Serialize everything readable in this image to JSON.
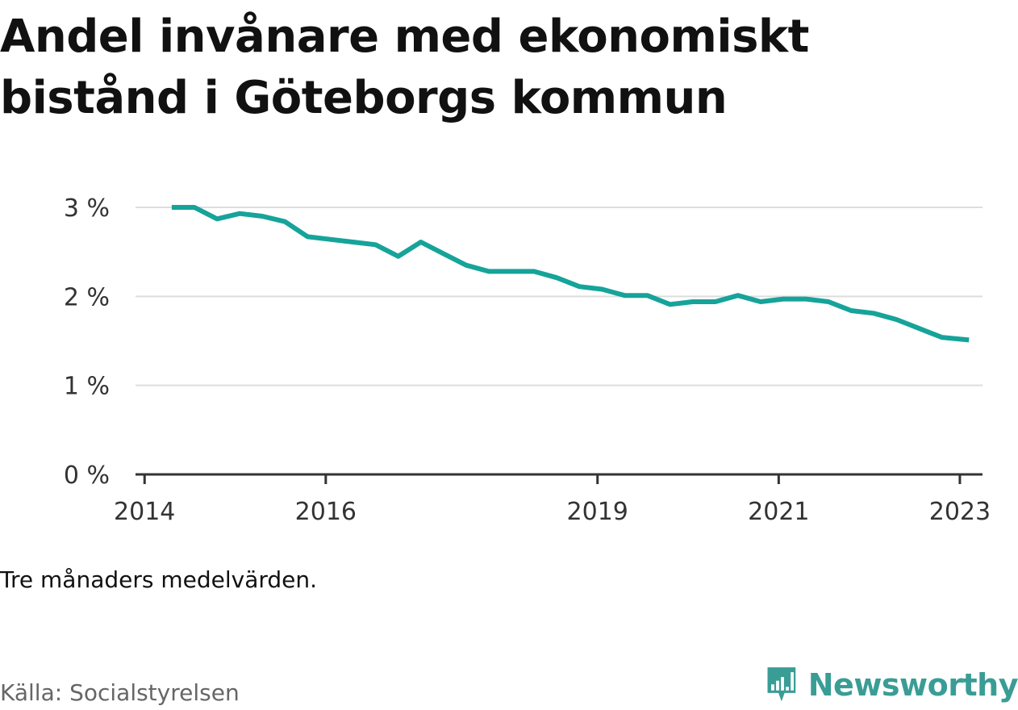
{
  "title": "Andel invånare med ekonomiskt bistånd i Göteborgs kommun",
  "note": "Tre månaders medelvärden.",
  "source": "Källa: Socialstyrelsen",
  "brand": {
    "name": "Newsworthy",
    "icon": "newsworthy-logo-icon",
    "color": "#3a9d95"
  },
  "colors": {
    "line": "#16a39a",
    "grid": "#dddddd",
    "axis": "#333333",
    "text": "#333333"
  },
  "chart_data": {
    "type": "line",
    "title": "Andel invånare med ekonomiskt bistånd i Göteborgs kommun",
    "xlabel": "",
    "ylabel": "",
    "ylim": [
      0,
      3
    ],
    "xlim": [
      2013.9,
      2023.25
    ],
    "grid": true,
    "legend": "none",
    "y_ticks": [
      {
        "value": 0,
        "label": "0 %"
      },
      {
        "value": 1,
        "label": "1 %"
      },
      {
        "value": 2,
        "label": "2 %"
      },
      {
        "value": 3,
        "label": "3 %"
      }
    ],
    "x_ticks": [
      {
        "value": 2014,
        "label": "2014"
      },
      {
        "value": 2016,
        "label": "2016"
      },
      {
        "value": 2019,
        "label": "2019"
      },
      {
        "value": 2021,
        "label": "2021"
      },
      {
        "value": 2023,
        "label": "2023"
      }
    ],
    "series": [
      {
        "x": [
          2014.3,
          2014.55,
          2014.8,
          2015.05,
          2015.3,
          2015.55,
          2015.8,
          2016.05,
          2016.3,
          2016.55,
          2016.8,
          2017.05,
          2017.3,
          2017.55,
          2017.8,
          2018.05,
          2018.3,
          2018.55,
          2018.8,
          2019.05,
          2019.3,
          2019.55,
          2019.8,
          2020.05,
          2020.3,
          2020.55,
          2020.8,
          2021.05,
          2021.3,
          2021.55,
          2021.8,
          2022.05,
          2022.3,
          2022.55,
          2022.8,
          2023.1
        ],
        "values": [
          3.0,
          3.0,
          2.87,
          2.93,
          2.9,
          2.84,
          2.67,
          2.64,
          2.61,
          2.58,
          2.45,
          2.61,
          2.48,
          2.35,
          2.28,
          2.28,
          2.28,
          2.21,
          2.11,
          2.08,
          2.01,
          2.01,
          1.91,
          1.94,
          1.94,
          2.01,
          1.94,
          1.97,
          1.97,
          1.94,
          1.84,
          1.81,
          1.74,
          1.64,
          1.54,
          1.51
        ]
      }
    ]
  }
}
